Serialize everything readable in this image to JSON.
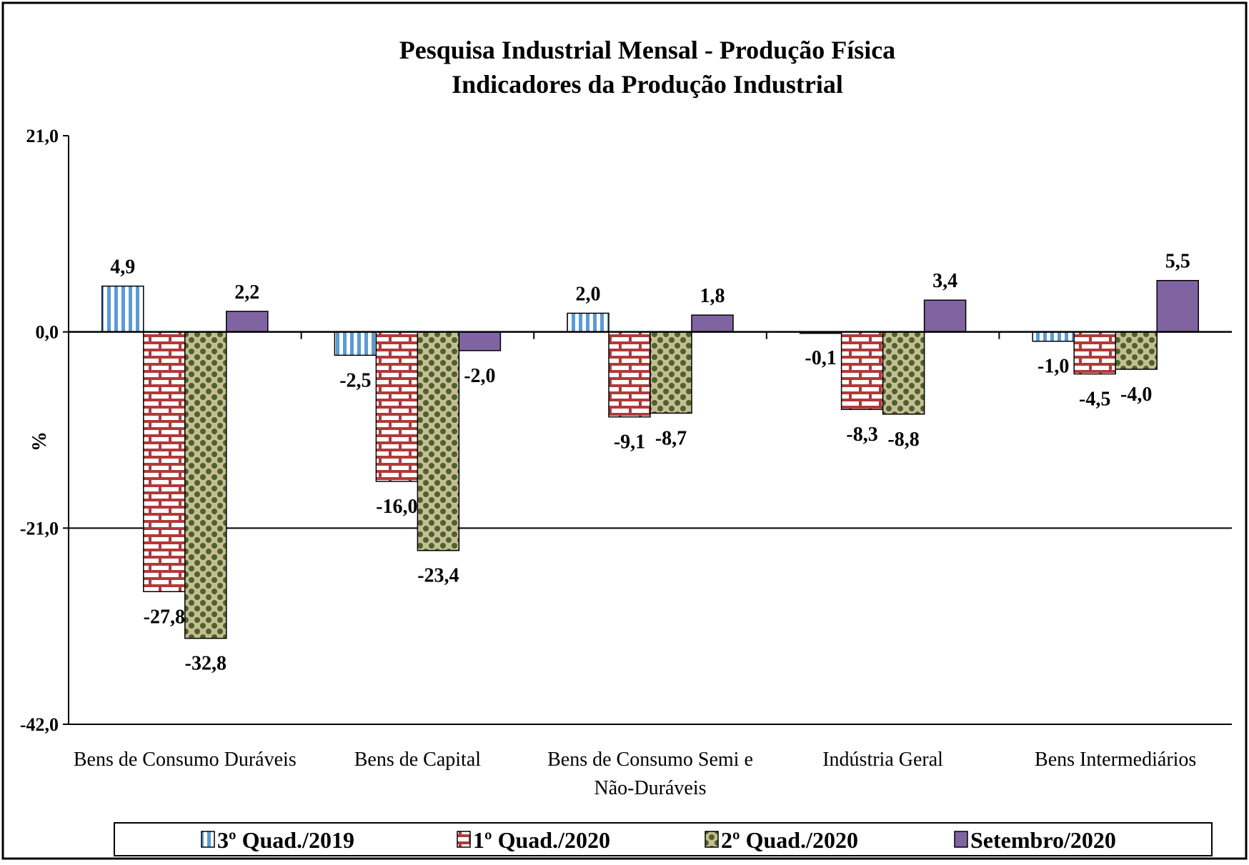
{
  "chart_data": {
    "type": "bar",
    "title": "Pesquisa Industrial Mensal - Produção Física",
    "subtitle": "Indicadores da Produção Industrial",
    "ylabel": "%",
    "ylim": [
      -42,
      21
    ],
    "yticks": [
      21,
      0,
      -21,
      -42
    ],
    "ytick_labels": [
      "21,0",
      "0,0",
      "-21,0",
      "-42,0"
    ],
    "gridlines_at": [
      -21
    ],
    "legend_position": "bottom",
    "categories": [
      [
        "Bens de Consumo Duráveis"
      ],
      [
        "Bens de Capital"
      ],
      [
        "Bens de Consumo Semi e",
        "Não-Duráveis"
      ],
      [
        "Indústria Geral"
      ],
      [
        "Bens Intermediários"
      ]
    ],
    "series": [
      {
        "name": "3º Quad./2019",
        "pattern": "vertical-stripes",
        "color": "#5b9bd5",
        "values": [
          4.9,
          -2.5,
          2.0,
          -0.1,
          -1.0
        ],
        "labels": [
          "4,9",
          "-2,5",
          "2,0",
          "-0,1",
          "-1,0"
        ]
      },
      {
        "name": "1º Quad./2020",
        "pattern": "brick",
        "color": "#a52a2a",
        "values": [
          -27.8,
          -16.0,
          -9.1,
          -8.3,
          -4.5
        ],
        "labels": [
          "-27,8",
          "-16,0",
          "-9,1",
          "-8,3",
          "-4,5"
        ]
      },
      {
        "name": "2º Quad./2020",
        "pattern": "checker",
        "color": "#4f6228",
        "values": [
          -32.8,
          -23.4,
          -8.7,
          -8.8,
          -4.0
        ],
        "labels": [
          "-32,8",
          "-23,4",
          "-8,7",
          "-8,8",
          "-4,0"
        ]
      },
      {
        "name": "Setembro/2020",
        "pattern": "solid",
        "color": "#8064a2",
        "values": [
          2.2,
          -2.0,
          1.8,
          3.4,
          5.5
        ],
        "labels": [
          "2,2",
          "-2,0",
          "1,8",
          "3,4",
          "5,5"
        ]
      }
    ]
  }
}
